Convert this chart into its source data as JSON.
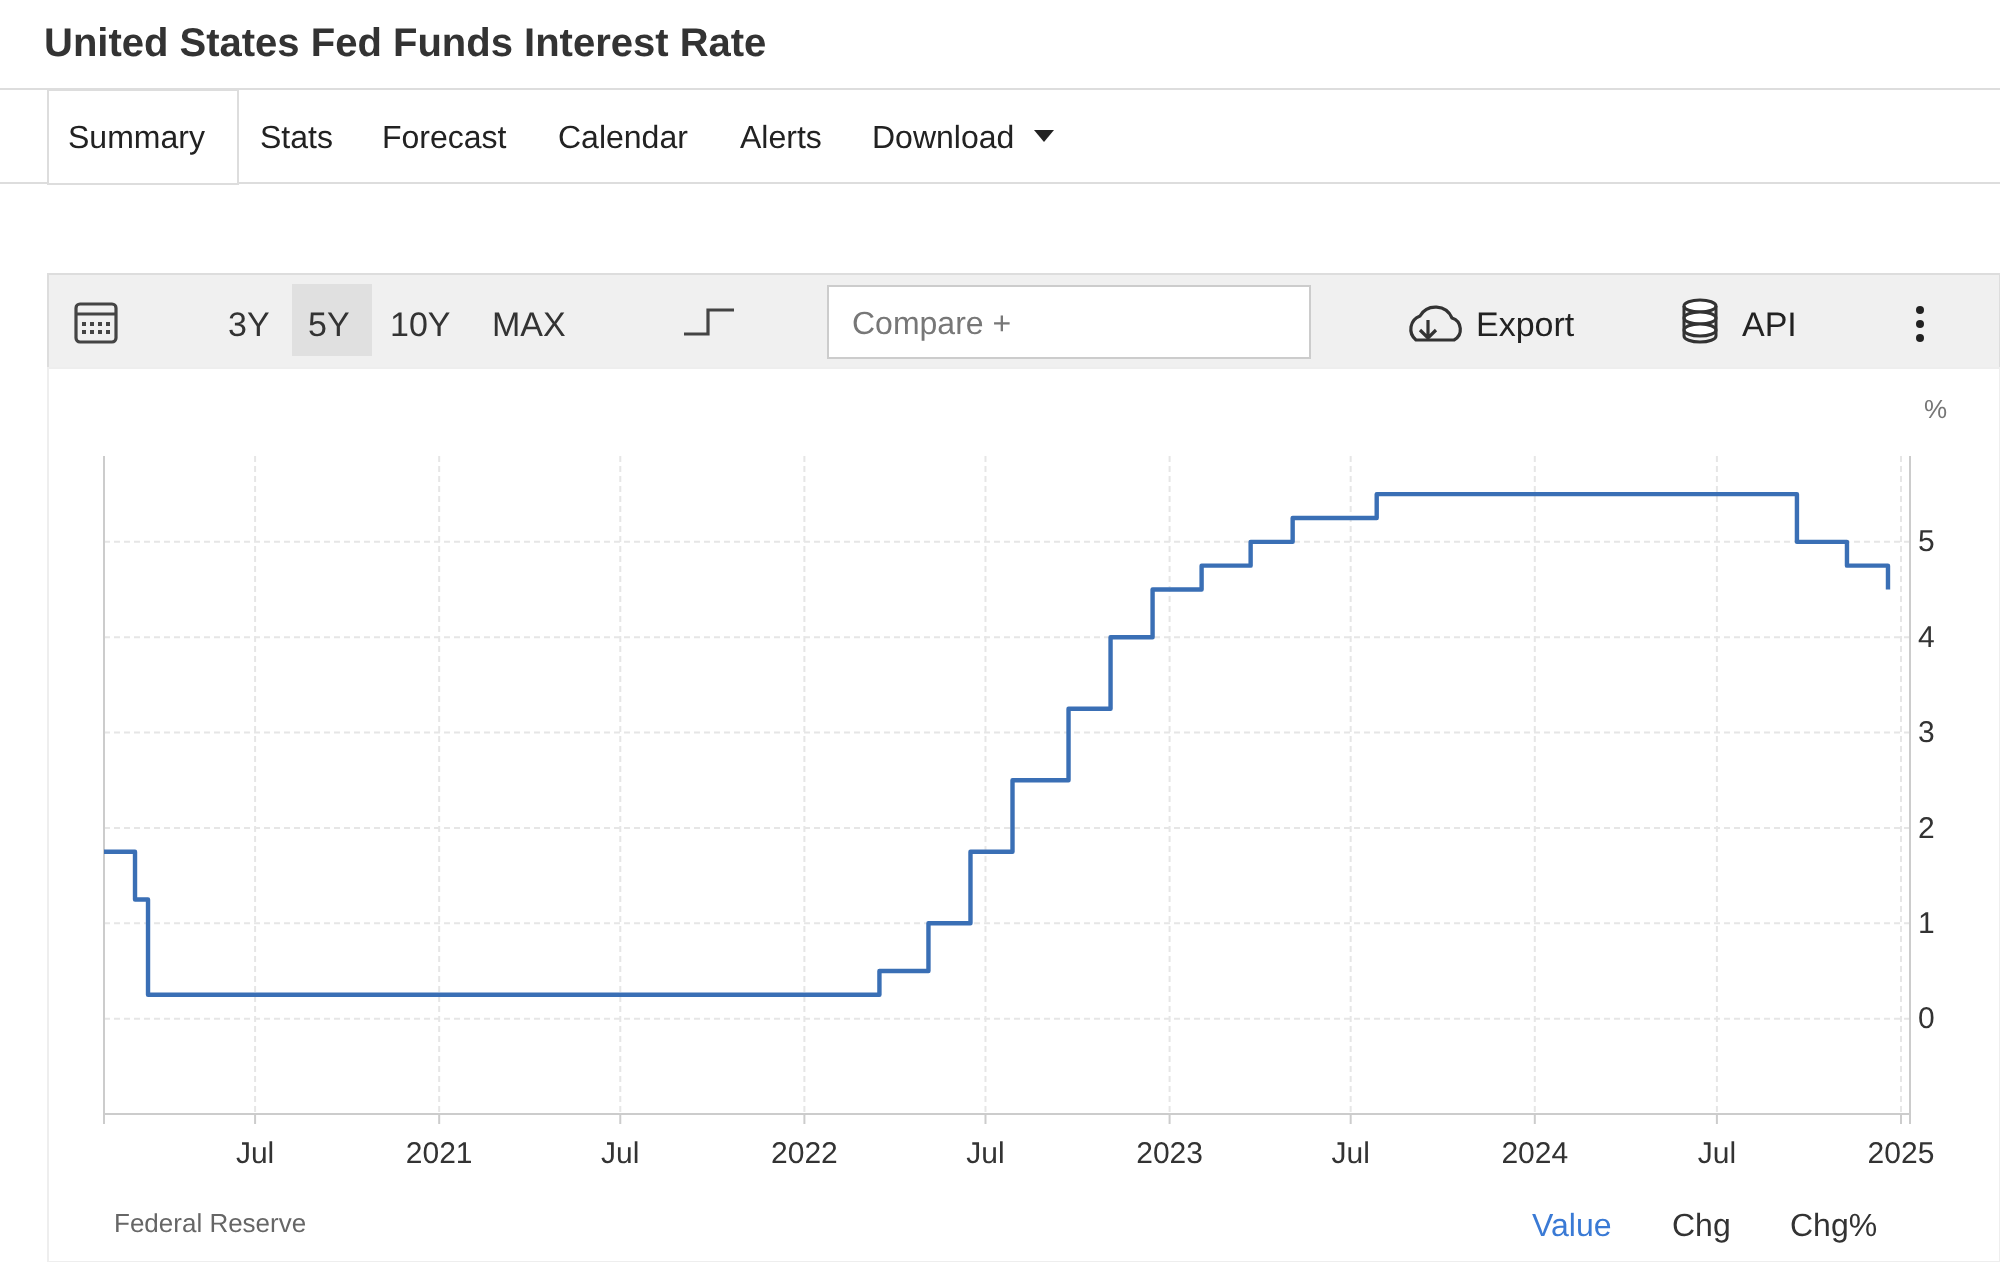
{
  "chart_data": {
    "type": "step",
    "title": "United States Fed Funds Interest Rate",
    "ylabel": "%",
    "x": [
      "2020-02-01",
      "2020-03-03",
      "2020-03-16",
      "2022-03-17",
      "2022-05-05",
      "2022-06-16",
      "2022-07-28",
      "2022-09-22",
      "2022-11-03",
      "2022-12-15",
      "2023-02-02",
      "2023-03-23",
      "2023-05-04",
      "2023-07-27",
      "2024-09-19",
      "2024-11-08",
      "2024-12-19"
    ],
    "series": [
      {
        "color": "#3a6fb5",
        "values": [
          1.75,
          1.25,
          0.25,
          0.5,
          1.0,
          1.75,
          2.5,
          3.25,
          4.0,
          4.5,
          4.75,
          5.0,
          5.25,
          5.5,
          5.0,
          4.75,
          4.5
        ]
      }
    ],
    "xlim": [
      "2020-02-01",
      "2025-01-10"
    ],
    "xticks": [
      {
        "value": "2020-07",
        "label": "Jul"
      },
      {
        "value": "2021",
        "label": "2021"
      },
      {
        "value": "2021-07",
        "label": "Jul"
      },
      {
        "value": "2022",
        "label": "2022"
      },
      {
        "value": "2022-07",
        "label": "Jul"
      },
      {
        "value": "2023",
        "label": "2023"
      },
      {
        "value": "2023-07",
        "label": "Jul"
      },
      {
        "value": "2024",
        "label": "2024"
      },
      {
        "value": "2024-07",
        "label": "Jul"
      },
      {
        "value": "2025",
        "label": "2025"
      }
    ],
    "ylim": [
      -1,
      5.9
    ],
    "yticks": [
      0,
      1,
      2,
      3,
      4,
      5
    ],
    "grid": true,
    "marker": "none",
    "line_style": "solid",
    "annotations": [
      "Summary",
      "Stats",
      "Forecast",
      "Calendar",
      "Alerts",
      "Download",
      "3Y",
      "5Y",
      "10Y",
      "MAX",
      "Compare +",
      "Export",
      "API",
      "Federal Reserve",
      "Value",
      "Chg",
      "Chg%"
    ]
  }
}
